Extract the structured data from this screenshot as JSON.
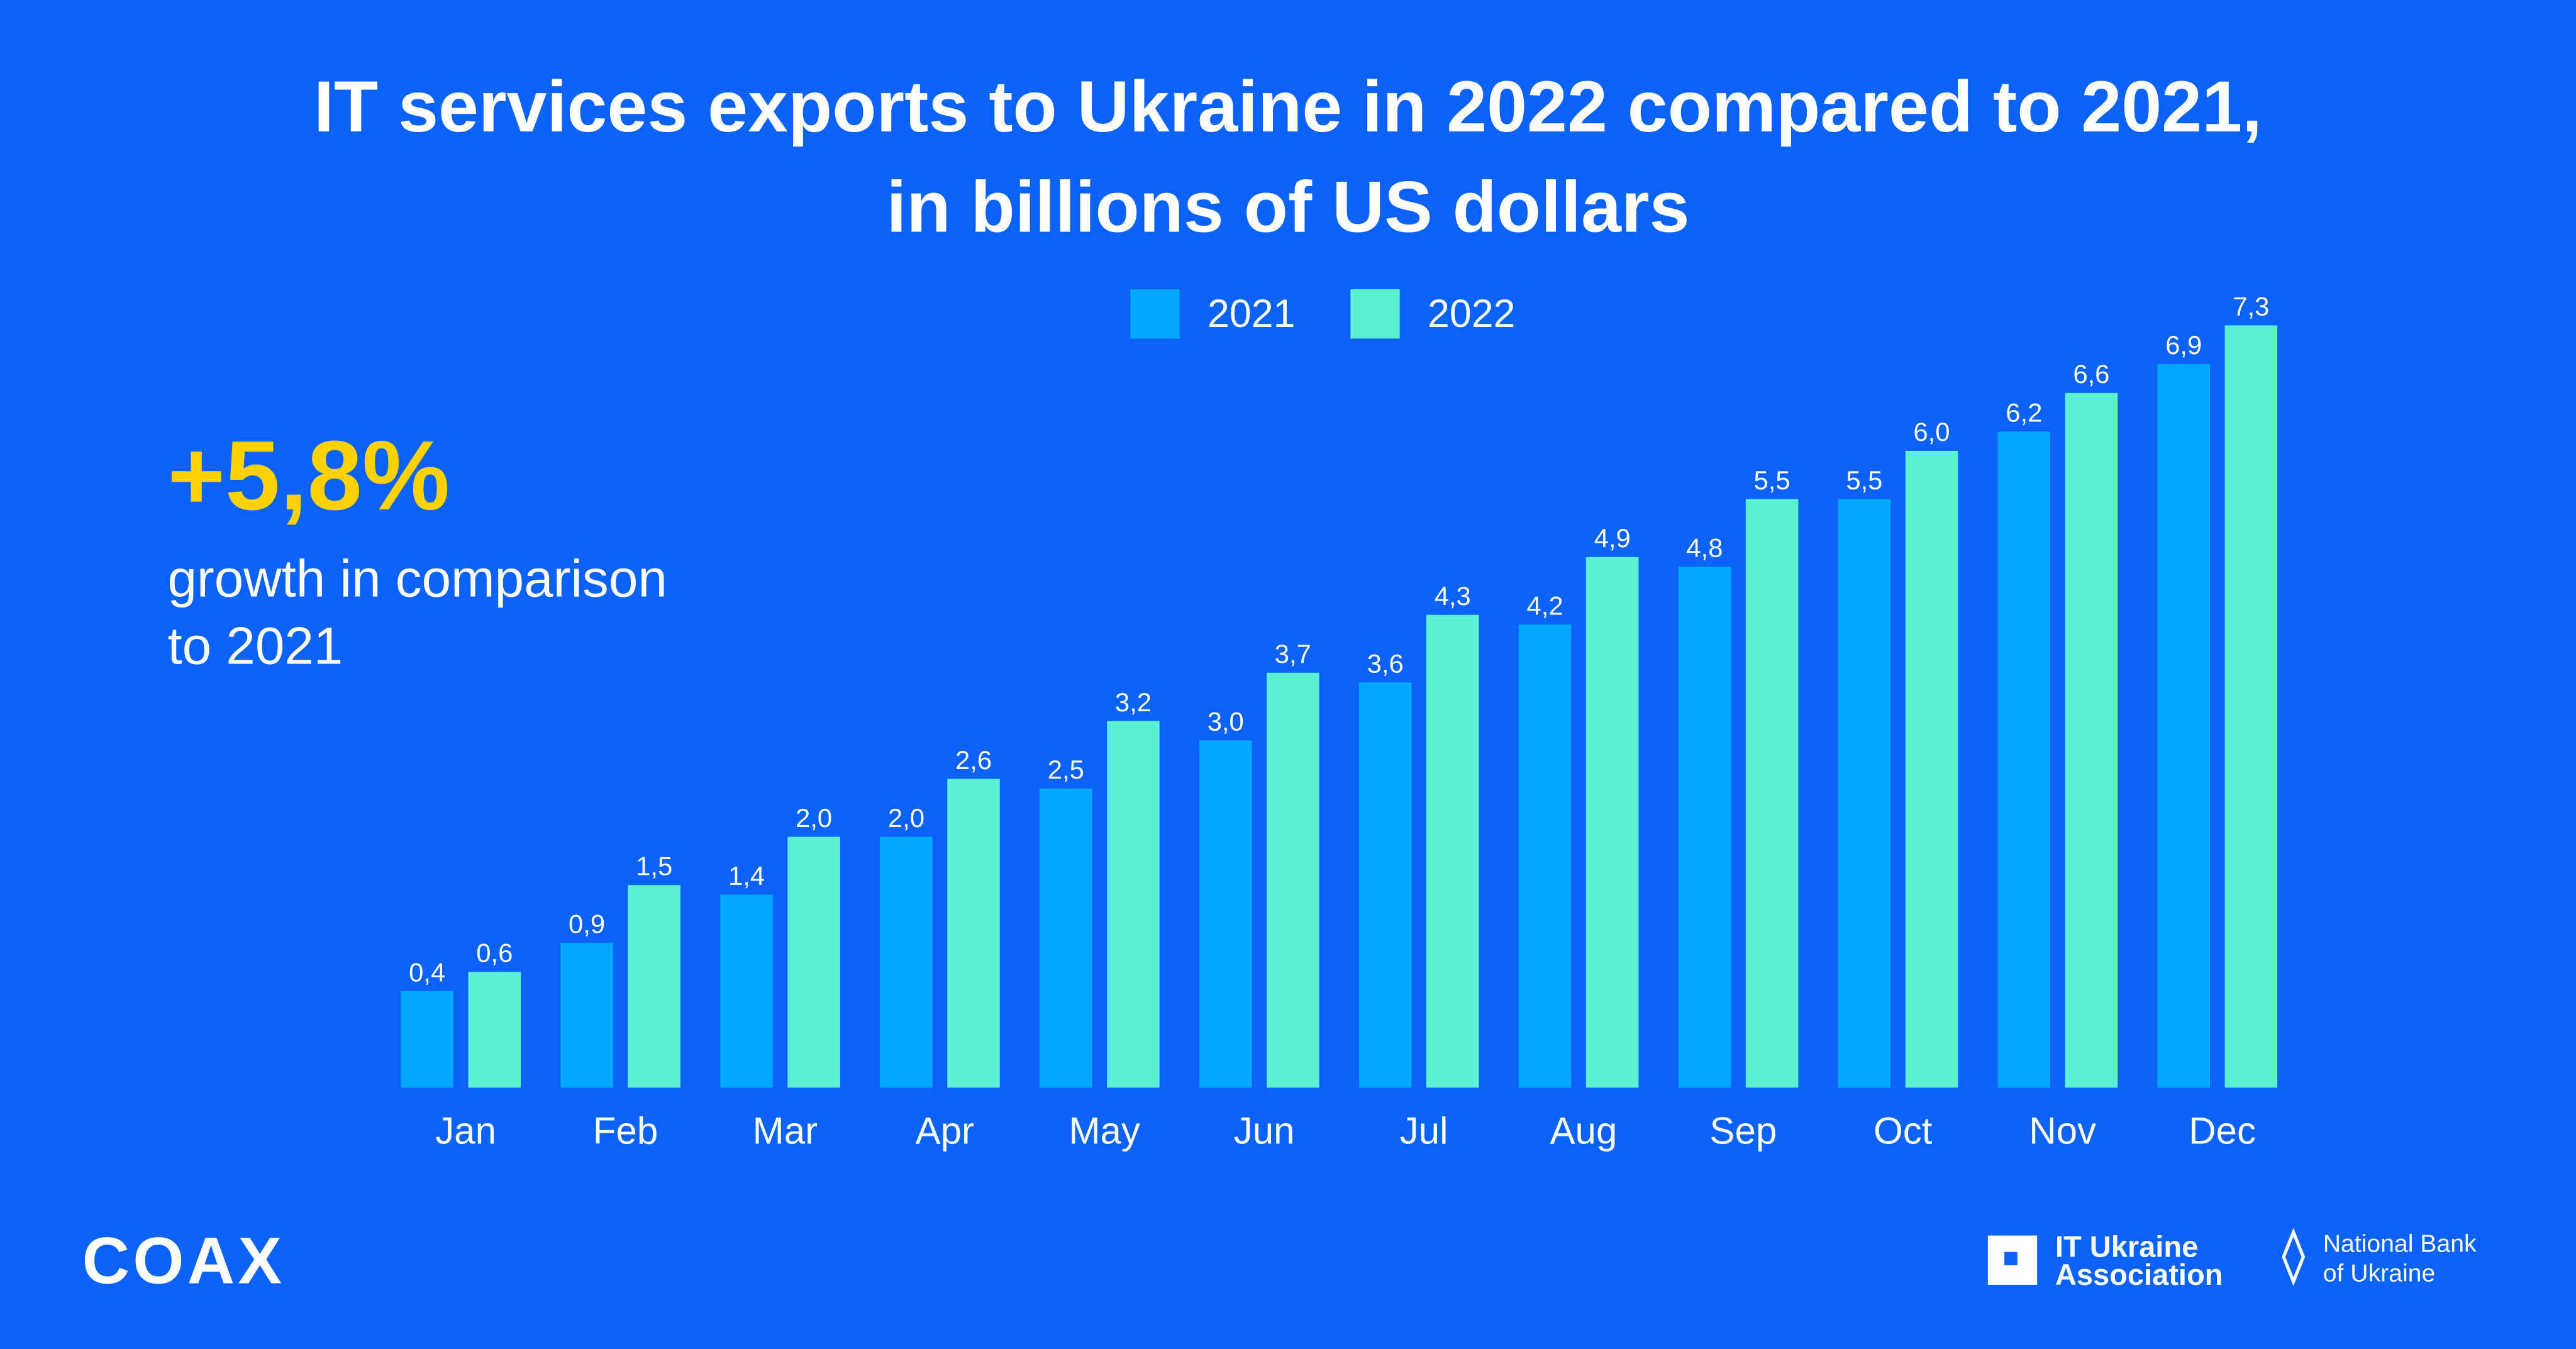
{
  "chart_data": {
    "type": "bar",
    "title": [
      "IT services exports to Ukraine in 2022 compared to 2021,",
      "in billions of US dollars"
    ],
    "categories": [
      "Jan",
      "Feb",
      "Mar",
      "Apr",
      "May",
      "Jun",
      "Jul",
      "Aug",
      "Sep",
      "Oct",
      "Nov",
      "Dec"
    ],
    "series": [
      {
        "name": "2021",
        "color": "#00a8ff",
        "values": [
          0.4,
          0.9,
          1.4,
          2.0,
          2.5,
          3.0,
          3.6,
          4.2,
          4.8,
          5.5,
          6.2,
          6.9
        ],
        "value_labels": [
          "0,4",
          "0,9",
          "1,4",
          "2,0",
          "2,5",
          "3,0",
          "3,6",
          "4,2",
          "4,8",
          "5,5",
          "6,2",
          "6,9"
        ]
      },
      {
        "name": "2022",
        "color": "#5cf0d2",
        "values": [
          0.6,
          1.5,
          2.0,
          2.6,
          3.2,
          3.7,
          4.3,
          4.9,
          5.5,
          6.0,
          6.6,
          7.3
        ],
        "value_labels": [
          "0,6",
          "1,5",
          "2,0",
          "2,6",
          "3,2",
          "3,7",
          "4,3",
          "4,9",
          "5,5",
          "6,0",
          "6,6",
          "7,3"
        ]
      }
    ],
    "ylim": [
      -0.6,
      7.3
    ],
    "legend": "top",
    "annotation": {
      "value": "+5,8%",
      "text": [
        "growth in comparison",
        "to 2021"
      ]
    }
  },
  "footer": {
    "brand": "COAX",
    "partner": [
      "IT Ukraine",
      "Association"
    ],
    "bank": [
      "National Bank",
      "of Ukraine"
    ]
  }
}
